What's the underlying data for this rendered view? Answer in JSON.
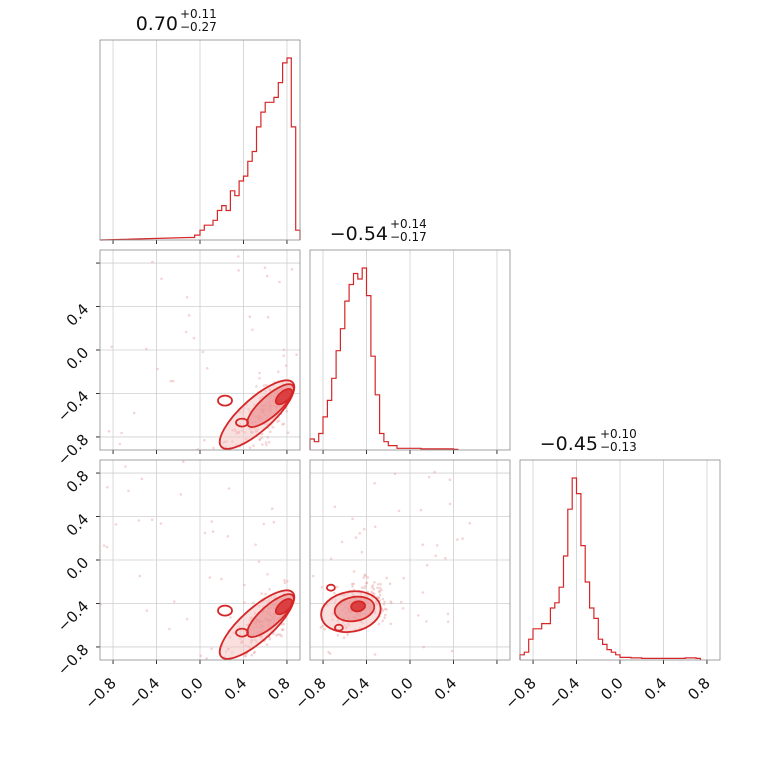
{
  "chart_data": {
    "type": "corner",
    "color": "#d62728",
    "range": [
      -0.92,
      0.92
    ],
    "titles": [
      {
        "value": "0.70",
        "plus": "+0.11",
        "minus": "−0.27"
      },
      {
        "value": "−0.54",
        "plus": "+0.14",
        "minus": "−0.17"
      },
      {
        "value": "−0.45",
        "plus": "+0.10",
        "minus": "−0.13"
      }
    ],
    "y_tick_labels": {
      "row1": [
        "0.4",
        "0.0",
        "−0.4",
        "−0.8"
      ],
      "row2": [
        "0.8",
        "0.4",
        "0.0",
        "−0.4",
        "−0.8"
      ]
    },
    "x_tick_labels": {
      "col0": [
        "−0.8",
        "−0.4",
        "0.0",
        "0.4",
        "0.8"
      ],
      "col1": [
        "−0.8",
        "−0.4",
        "0.0",
        "0.4"
      ],
      "col2": [
        "−0.8",
        "−0.4",
        "0.0",
        "0.4",
        "0.8"
      ]
    },
    "histograms": [
      {
        "param": 0,
        "x": [
          -0.1,
          -0.05,
          0.0,
          0.04,
          0.08,
          0.12,
          0.16,
          0.2,
          0.24,
          0.28,
          0.32,
          0.36,
          0.4,
          0.44,
          0.48,
          0.52,
          0.56,
          0.6,
          0.64,
          0.68,
          0.72,
          0.76,
          0.8,
          0.84,
          0.88
        ],
        "counts": [
          0.5,
          1,
          2,
          3,
          3,
          4,
          6,
          7,
          6,
          10,
          9,
          12,
          13,
          16,
          18,
          23,
          26,
          28,
          28,
          29,
          32,
          36,
          37,
          23,
          2
        ]
      },
      {
        "param": 1,
        "x": [
          -0.92,
          -0.88,
          -0.84,
          -0.8,
          -0.76,
          -0.72,
          -0.68,
          -0.64,
          -0.6,
          -0.56,
          -0.52,
          -0.48,
          -0.44,
          -0.4,
          -0.36,
          -0.32,
          -0.28,
          -0.24,
          -0.2,
          -0.16,
          -0.12,
          -0.08,
          -0.04,
          0.0,
          0.1,
          0.2,
          0.3,
          0.4
        ],
        "counts": [
          2,
          1.5,
          3,
          6,
          9,
          13,
          18,
          22,
          27,
          30,
          32,
          31,
          33,
          28,
          17,
          10,
          3,
          1.5,
          0.8,
          0.8,
          0.3,
          0.3,
          0.3,
          0.3,
          0.2,
          0.2,
          0.2,
          0.1
        ]
      },
      {
        "param": 2,
        "x": [
          -0.92,
          -0.88,
          -0.84,
          -0.8,
          -0.76,
          -0.72,
          -0.68,
          -0.64,
          -0.6,
          -0.56,
          -0.52,
          -0.48,
          -0.44,
          -0.4,
          -0.36,
          -0.32,
          -0.28,
          -0.24,
          -0.2,
          -0.16,
          -0.12,
          -0.08,
          -0.04,
          0.0,
          0.1,
          0.2,
          0.3,
          0.4,
          0.5,
          0.6,
          0.7
        ],
        "counts": [
          1,
          1.5,
          4,
          6,
          6,
          7,
          7,
          10,
          11,
          14,
          20,
          29,
          35,
          32,
          22,
          15,
          10,
          8,
          4,
          3,
          2,
          1.5,
          1,
          0.5,
          0.4,
          0.3,
          0.3,
          0.3,
          0.3,
          0.4,
          0.3
        ]
      }
    ],
    "pairs": [
      {
        "row": 1,
        "col": 0,
        "peak": [
          0.8,
          -0.41
        ],
        "description_levels": 3
      },
      {
        "row": 2,
        "col": 0,
        "peak": [
          0.8,
          -0.41
        ],
        "description_levels": 3
      },
      {
        "row": 2,
        "col": 1,
        "peak": [
          -0.47,
          -0.42
        ],
        "description_levels": 3
      }
    ]
  }
}
